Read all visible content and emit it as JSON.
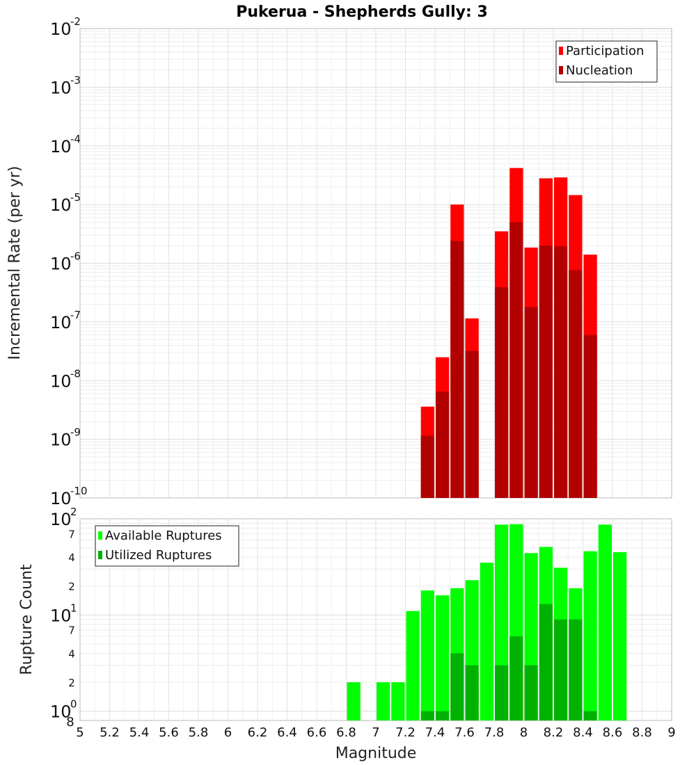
{
  "chart_data": [
    {
      "type": "bar",
      "title": "Pukerua - Shepherds Gully: 3",
      "xlabel": "",
      "ylabel": "Incremental Rate (per yr)",
      "yscale": "log",
      "ylim": [
        1e-10,
        0.01
      ],
      "xlim": [
        5,
        9
      ],
      "grid": true,
      "legend_position": "top-right",
      "x": [
        7.35,
        7.45,
        7.55,
        7.65,
        7.85,
        7.95,
        8.05,
        8.15,
        8.25,
        8.35,
        8.45
      ],
      "series": [
        {
          "name": "Participation",
          "color": "#ff0000",
          "values": [
            3.6e-09,
            2.5e-08,
            1e-05,
            1.15e-07,
            3.5e-06,
            4.2e-05,
            1.85e-06,
            2.8e-05,
            2.9e-05,
            1.45e-05,
            1.4e-06
          ]
        },
        {
          "name": "Nucleation",
          "color": "#b20000",
          "values": [
            1.15e-09,
            6.5e-09,
            2.4e-06,
            3.2e-08,
            3.9e-07,
            5e-06,
            1.8e-07,
            2e-06,
            1.95e-06,
            7.6e-07,
            6e-08
          ]
        }
      ]
    },
    {
      "type": "bar",
      "title": "",
      "xlabel": "Magnitude",
      "ylabel": "Rupture Count",
      "yscale": "log",
      "ylim": [
        0.8,
        100
      ],
      "xlim": [
        5,
        9
      ],
      "grid": true,
      "legend_position": "top-left",
      "x": [
        6.85,
        7.05,
        7.15,
        7.25,
        7.35,
        7.45,
        7.55,
        7.65,
        7.75,
        7.85,
        7.95,
        8.05,
        8.15,
        8.25,
        8.35,
        8.45,
        8.55,
        8.65
      ],
      "series": [
        {
          "name": "Available Ruptures",
          "color": "#00ff00",
          "values": [
            2,
            2,
            2,
            11,
            18,
            16,
            19,
            23,
            35,
            87,
            88,
            44,
            51,
            31,
            19,
            46,
            87,
            45
          ]
        },
        {
          "name": "Utilized Ruptures",
          "color": "#00b200",
          "values": [
            0,
            0,
            0,
            0,
            1,
            1,
            4,
            3,
            0,
            3,
            6,
            3,
            13,
            9,
            9,
            1,
            0,
            0
          ]
        }
      ],
      "xticks": [
        "5",
        "5.2",
        "5.4",
        "5.6",
        "5.8",
        "6",
        "6.2",
        "6.4",
        "6.6",
        "6.8",
        "7",
        "7.2",
        "7.4",
        "7.6",
        "7.8",
        "8",
        "8.2",
        "8.4",
        "8.6",
        "8.8",
        "9"
      ]
    }
  ]
}
